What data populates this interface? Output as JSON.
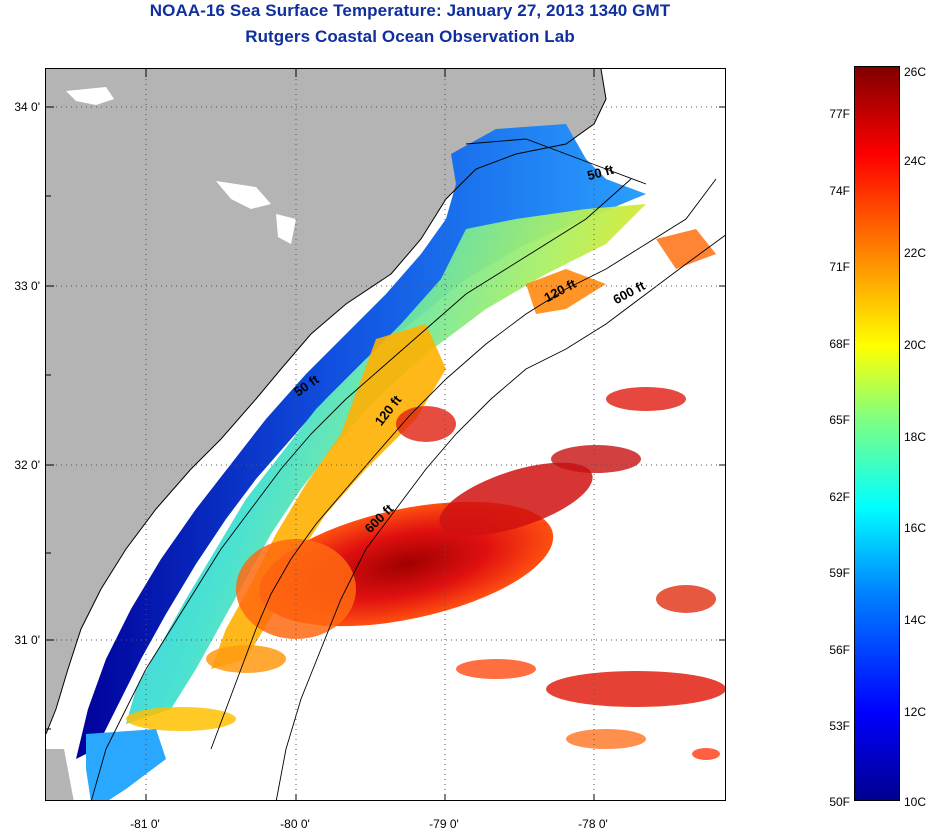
{
  "title": {
    "line1": "NOAA-16 Sea Surface Temperature:  January 27, 2013 1340 GMT",
    "line2": "Rutgers Coastal Ocean Observation Lab"
  },
  "map": {
    "lat_labels": [
      "34 0'",
      "33 0'",
      "32 0'",
      "31 0'"
    ],
    "lon_labels": [
      "-81 0'",
      "-80 0'",
      "-79 0'",
      "-78 0'"
    ],
    "contour_labels": [
      "50 ft",
      "50 ft",
      "120 ft",
      "120 ft",
      "600 ft",
      "600 ft"
    ],
    "colors": {
      "land": "#b4b4b4",
      "cloud_or_nodata": "#ffffff",
      "grid": "#555555"
    }
  },
  "colorbar": {
    "fahrenheit_labels": [
      "77F",
      "74F",
      "71F",
      "68F",
      "65F",
      "62F",
      "59F",
      "56F",
      "53F",
      "50F"
    ],
    "celsius_labels": [
      "26C",
      "24C",
      "22C",
      "20C",
      "18C",
      "16C",
      "14C",
      "12C",
      "10C"
    ],
    "range_c": [
      10,
      26
    ],
    "range_f": [
      50,
      78.8
    ],
    "colormap": [
      "#00008f",
      "#0000ff",
      "#0080ff",
      "#00ffff",
      "#80ff80",
      "#ffff00",
      "#ff8000",
      "#ff0000",
      "#800000"
    ]
  }
}
